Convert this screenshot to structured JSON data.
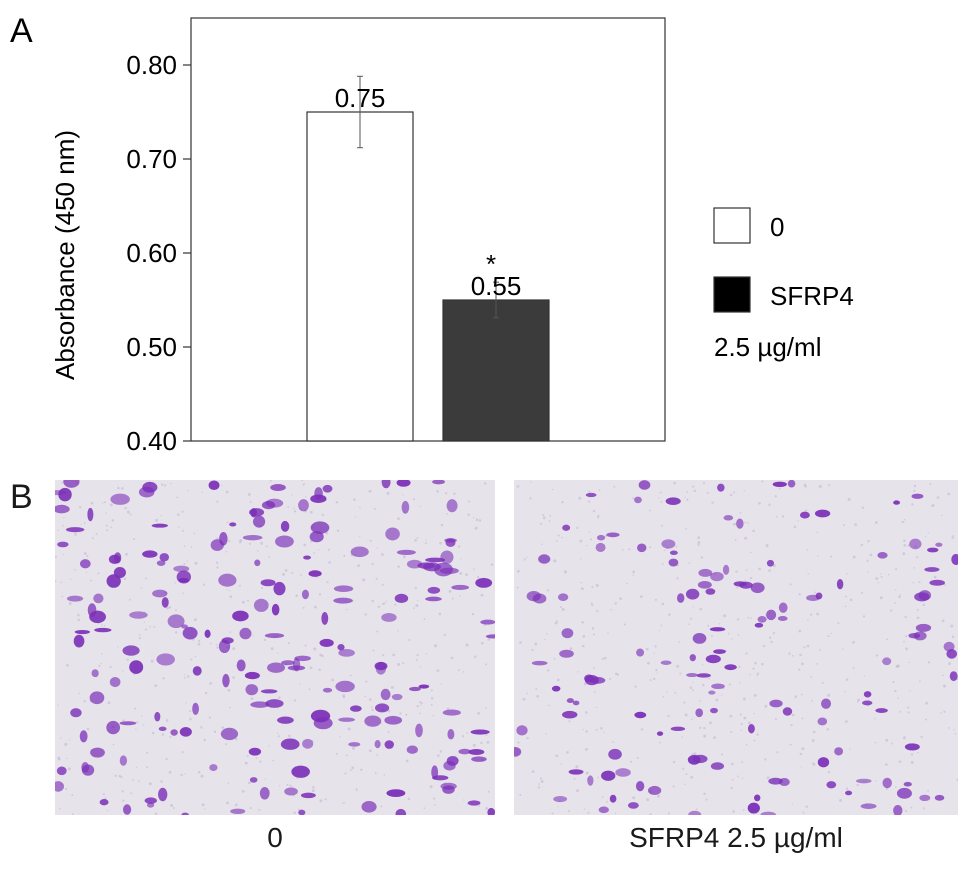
{
  "panel_labels": {
    "a": "A",
    "b": "B"
  },
  "chart_data": {
    "type": "bar",
    "categories": [
      "0",
      "SFRP4 2.5 µg/ml"
    ],
    "values": [
      0.75,
      0.55
    ],
    "errors": [
      0.038,
      0.019
    ],
    "data_labels": [
      "0.75",
      "0.55"
    ],
    "significance": [
      "",
      "*"
    ],
    "bar_colors": [
      "#ffffff",
      "#3b3b3b"
    ],
    "ylabel": "Absorbance (450 nm)",
    "ylim": [
      0.4,
      0.85
    ],
    "yticks": [
      "0.40",
      "0.50",
      "0.60",
      "0.70",
      "0.80"
    ],
    "grid": false,
    "legend": {
      "placement": "right",
      "entries": [
        {
          "label": "0",
          "color": "#ffffff"
        },
        {
          "label": "SFRP4",
          "color": "#000000"
        }
      ],
      "note": "2.5 µg/ml"
    }
  },
  "micrographs": {
    "left_caption": "0",
    "right_caption": "SFRP4 2.5 µg/ml",
    "stain_color": "#7b2fb8"
  }
}
